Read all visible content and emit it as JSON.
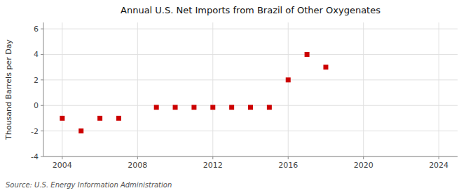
{
  "chart_data": {
    "type": "scatter",
    "title": "Annual U.S. Net Imports from Brazil of Other Oxygenates",
    "ylabel": "Thousand Barrels per Day",
    "source": "Source: U.S. Energy Information Administration",
    "x": [
      2004,
      2005,
      2006,
      2007,
      2009,
      2010,
      2011,
      2012,
      2013,
      2014,
      2015,
      2016,
      2017,
      2018
    ],
    "values": [
      -1.0,
      -2.0,
      -1.0,
      -1.0,
      -0.15,
      -0.15,
      -0.15,
      -0.15,
      -0.15,
      -0.15,
      -0.15,
      2.0,
      4.0,
      3.0
    ],
    "color": "#cc0000",
    "marker": "square",
    "xlim": [
      2003,
      2025
    ],
    "ylim": [
      -4,
      6.5
    ],
    "xticks": [
      2004,
      2008,
      2012,
      2016,
      2020,
      2024
    ],
    "yticks": [
      -4,
      -2,
      0,
      2,
      4,
      6
    ],
    "grid": true
  }
}
